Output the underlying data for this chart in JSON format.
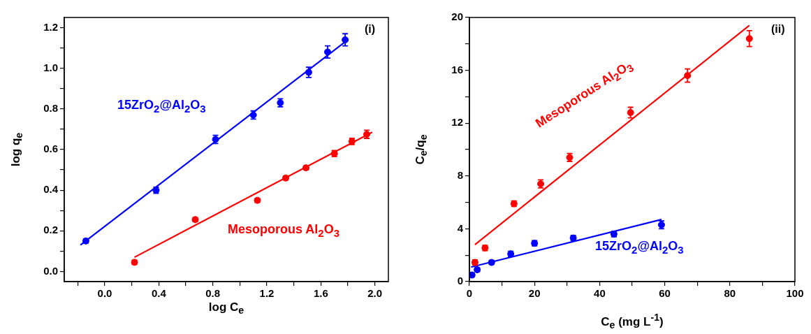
{
  "chart_data": [
    {
      "type": "scatter",
      "xlabel": "log C$_{e}$",
      "ylabel": "log q$_{e}$",
      "xlim": [
        -0.3,
        2.1
      ],
      "ylim": [
        -0.05,
        1.25
      ],
      "xticks": [
        {
          "value": -0.2,
          "label": null
        },
        {
          "value": 0,
          "label": "0.0"
        },
        {
          "value": 0.2,
          "label": null
        },
        {
          "value": 0.4,
          "label": "0.4"
        },
        {
          "value": 0.6,
          "label": null
        },
        {
          "value": 0.8,
          "label": "0.8"
        },
        {
          "value": 1.0,
          "label": null
        },
        {
          "value": 1.2,
          "label": "1.2"
        },
        {
          "value": 1.4,
          "label": null
        },
        {
          "value": 1.6,
          "label": "1.6"
        },
        {
          "value": 1.8,
          "label": null
        },
        {
          "value": 2.0,
          "label": "2.0"
        }
      ],
      "yticks": [
        {
          "value": 0,
          "label": "0.0"
        },
        {
          "value": 0.1,
          "label": null
        },
        {
          "value": 0.2,
          "label": "0.2"
        },
        {
          "value": 0.3,
          "label": null
        },
        {
          "value": 0.4,
          "label": "0.4"
        },
        {
          "value": 0.5,
          "label": null
        },
        {
          "value": 0.6,
          "label": "0.6"
        },
        {
          "value": 0.7,
          "label": null
        },
        {
          "value": 0.8,
          "label": "0.8"
        },
        {
          "value": 0.9,
          "label": null
        },
        {
          "value": 1.0,
          "label": "1.0"
        },
        {
          "value": 1.1,
          "label": null
        },
        {
          "value": 1.2,
          "label": "1.2"
        }
      ],
      "grid": false,
      "legend": false,
      "marker": "circle",
      "annotations": [
        "(i)"
      ],
      "series": [
        {
          "name": "15ZrO$_{2}$@Al$_{2}$O$_{3}$",
          "color": "#0000ff",
          "x": [
            -0.14,
            0.38,
            0.82,
            1.1,
            1.3,
            1.51,
            1.65,
            1.78
          ],
          "values": [
            0.15,
            0.4,
            0.65,
            0.77,
            0.83,
            0.98,
            1.08,
            1.14
          ],
          "errors": [
            0.01,
            0.015,
            0.02,
            0.02,
            0.02,
            0.025,
            0.03,
            0.03
          ]
        },
        {
          "type": "line",
          "color": "#0000ff",
          "marker": "none",
          "x": [
            -0.18,
            1.78
          ],
          "values": [
            0.13,
            1.13
          ]
        },
        {
          "name": "Mesoporous Al$_{2}$O$_{3}$",
          "color": "#ff0000",
          "x": [
            0.22,
            0.67,
            1.13,
            1.34,
            1.49,
            1.7,
            1.83,
            1.94
          ],
          "values": [
            0.045,
            0.255,
            0.35,
            0.46,
            0.51,
            0.58,
            0.64,
            0.675
          ],
          "errors": [
            0.01,
            0.01,
            0.01,
            0.01,
            0.01,
            0.015,
            0.015,
            0.02
          ]
        },
        {
          "type": "line",
          "color": "#ff0000",
          "marker": "none",
          "x": [
            0.22,
            1.98
          ],
          "values": [
            0.07,
            0.685
          ]
        }
      ]
    },
    {
      "type": "scatter",
      "xlabel": "C$_{e}$ (mg L$^{-1}$)",
      "ylabel": "C$_{e}$/q$_{e}$",
      "xlim": [
        0,
        100
      ],
      "ylim": [
        0,
        20
      ],
      "xticks": [
        0,
        {
          "value": 10,
          "label": null
        },
        20,
        {
          "value": 30,
          "label": null
        },
        40,
        {
          "value": 50,
          "label": null
        },
        60,
        {
          "value": 70,
          "label": null
        },
        80,
        {
          "value": 90,
          "label": null
        },
        100
      ],
      "yticks": [
        0,
        {
          "value": 2,
          "label": null
        },
        4,
        {
          "value": 6,
          "label": null
        },
        8,
        {
          "value": 10,
          "label": null
        },
        12,
        {
          "value": 14,
          "label": null
        },
        16,
        {
          "value": 18,
          "label": null
        },
        20
      ],
      "grid": false,
      "legend": false,
      "marker": "circle",
      "annotations": [
        "(ii)"
      ],
      "series": [
        {
          "name": "Mesoporous Al$_{2}$O$_{3}$",
          "color": "#ff0000",
          "x": [
            1.7,
            4.8,
            13.7,
            21.9,
            30.8,
            49.5,
            67,
            86
          ],
          "values": [
            1.45,
            2.55,
            5.9,
            7.4,
            9.4,
            12.8,
            15.6,
            18.4
          ],
          "errors": [
            0.2,
            0.2,
            0.2,
            0.3,
            0.3,
            0.4,
            0.5,
            0.6
          ]
        },
        {
          "type": "line",
          "color": "#ff0000",
          "marker": "none",
          "x": [
            1.7,
            86
          ],
          "values": [
            2.8,
            19.4
          ]
        },
        {
          "name": "15ZrO$_{2}$@Al$_{2}$O$_{3}$",
          "color": "#0000ff",
          "x": [
            0.8,
            2.4,
            6.8,
            12.7,
            20,
            31.9,
            44.4,
            59
          ],
          "values": [
            0.5,
            0.9,
            1.45,
            2.1,
            2.9,
            3.3,
            3.6,
            4.3
          ],
          "errors": [
            0.15,
            0.15,
            0.15,
            0.2,
            0.2,
            0.2,
            0.2,
            0.3
          ]
        },
        {
          "type": "line",
          "color": "#0000ff",
          "marker": "none",
          "x": [
            0.5,
            59
          ],
          "values": [
            1.1,
            4.7
          ]
        }
      ]
    }
  ]
}
